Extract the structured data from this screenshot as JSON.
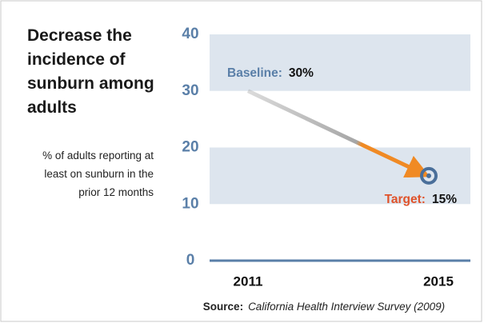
{
  "chart_data": {
    "type": "arrow",
    "title": "Decrease the incidence of sunburn among adults",
    "y_label": "% of adults reporting at least on sunburn in the prior 12 months",
    "categories": [
      "2011",
      "2015"
    ],
    "values": [
      30,
      15
    ],
    "value_labels": [
      "30%",
      "15%"
    ],
    "point_labels": [
      "Baseline:",
      "Target:"
    ],
    "point_label_colors": [
      "#5a7fa8",
      "#e0522a"
    ],
    "arrow_colors": [
      "#a6a6a6",
      "#f08a24"
    ],
    "target_color": "#4a6f9a",
    "band_color": "#dde5ee",
    "ylim": [
      0,
      40
    ],
    "yticks": [
      0,
      10,
      20,
      30,
      40
    ],
    "source_label": "Source:",
    "source": "California Health Interview Survey (2009)"
  }
}
